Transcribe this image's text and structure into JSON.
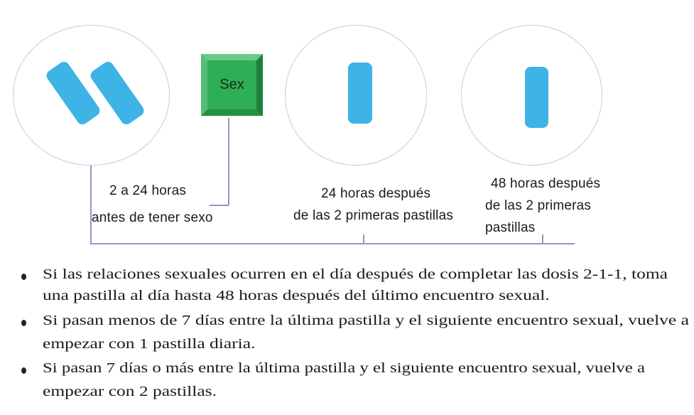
{
  "diagram": {
    "sex_box_label": "Sex",
    "labels": {
      "step1_line1": "2 a 24 horas",
      "step1_line2": "antes de tener sexo",
      "step2_line1": "24 horas después",
      "step2_line2": "de las 2 primeras pastillas",
      "step3_line1": "48 horas después",
      "step3_line2": "de las 2 primeras",
      "step3_line3": "pastillas"
    },
    "pill_color": "#3db3e6",
    "sex_box_color": "#2eaf55"
  },
  "bullets": [
    {
      "line1": "Si las relaciones sexuales ocurren en el día después de completar las dosis 2-1-1, toma",
      "line2": "una pastilla al día hasta 48 horas después del último encuentro sexual."
    },
    {
      "line1": "Si pasan menos de 7 días entre la última pastilla y el siguiente encuentro sexual, vuelve a",
      "line2": "empezar con 1 pastilla diaria."
    },
    {
      "line1": "Si pasan 7 días o más entre la última pastilla y el siguiente encuentro sexual, vuelve a",
      "line2": "empezar con 2 pastillas."
    }
  ]
}
